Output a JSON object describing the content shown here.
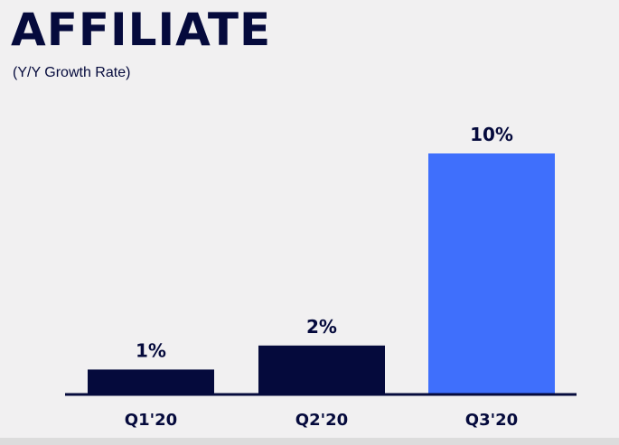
{
  "header": {
    "title": "AFFILIATE",
    "subtitle": "(Y/Y Growth Rate)"
  },
  "chart_data": {
    "type": "bar",
    "categories": [
      "Q1'20",
      "Q2'20",
      "Q3'20"
    ],
    "values": [
      1,
      2,
      10
    ],
    "data_labels": [
      "1%",
      "2%",
      "10%"
    ],
    "colors": [
      "#050a3c",
      "#050a3c",
      "#3f6ffc"
    ],
    "ylim": [
      0,
      10
    ],
    "grid": false,
    "legend": "none"
  },
  "colors": {
    "navy": "#050a3c",
    "accent": "#3f6ffc",
    "background": "#f1f0f1"
  }
}
